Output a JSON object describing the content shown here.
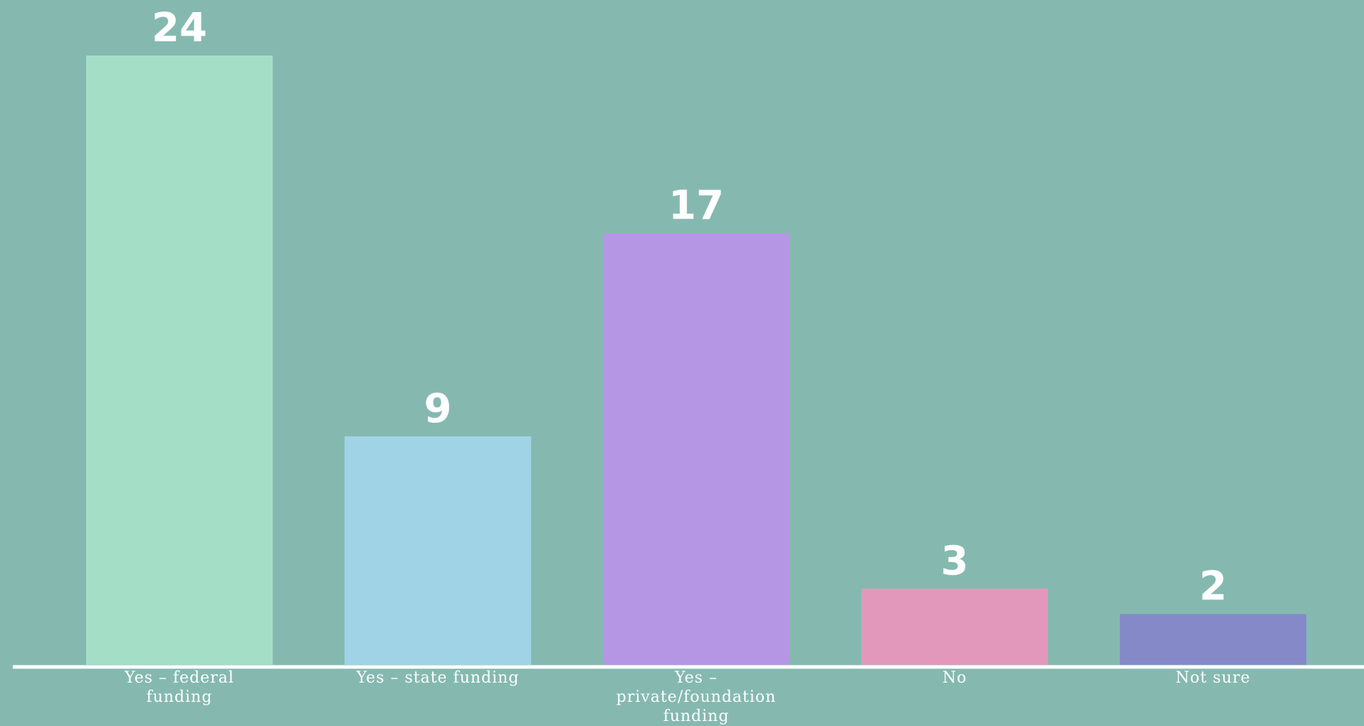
{
  "chart_data": {
    "type": "bar",
    "categories": [
      [
        "Yes – federal",
        "funding"
      ],
      [
        "Yes – state funding"
      ],
      [
        "Yes –",
        "private/foundation",
        "funding"
      ],
      [
        "No"
      ],
      [
        "Not sure"
      ]
    ],
    "values": [
      24,
      9,
      17,
      3,
      2
    ],
    "data_labels": [
      "24",
      "9",
      "17",
      "3",
      "2"
    ],
    "colors": [
      "#a5dec7",
      "#a0d3e6",
      "#b596e4",
      "#e198bb",
      "#8589c8"
    ],
    "background": "#85b9b0",
    "axis_color": "#ffffff",
    "ylim": [
      0,
      24
    ],
    "grid": false
  }
}
